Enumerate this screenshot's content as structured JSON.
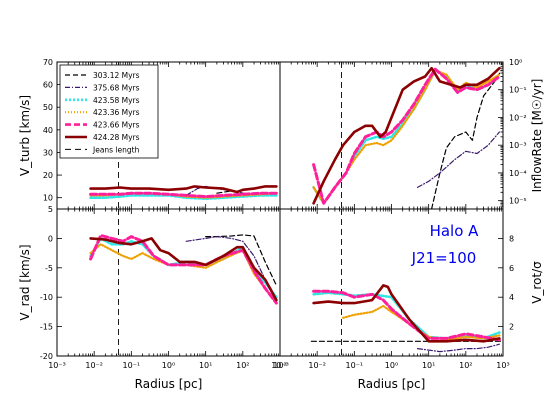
{
  "chart_data": {
    "type": "line",
    "legend": {
      "placement": "upper-left of top-left panel",
      "entries": [
        {
          "label": "303.12 Myrs",
          "color": "#000000",
          "dash": "5,3",
          "width": 1.2
        },
        {
          "label": "375.68 Myrs",
          "color": "#3b1a6e",
          "dash": "5,2,1,2",
          "width": 1.2
        },
        {
          "label": "423.58 Myrs",
          "color": "#33e6e6",
          "dash": "2,2",
          "width": 2.6
        },
        {
          "label": "423.36 Myrs",
          "color": "#f0a000",
          "dash": "1,2",
          "width": 2.2
        },
        {
          "label": "423.66 Myrs",
          "color": "#ff1f9a",
          "dash": "6,3",
          "width": 3.0
        },
        {
          "label": "424.28 Myrs",
          "color": "#8b0000",
          "dash": "",
          "width": 2.6
        },
        {
          "label": "Jeans length",
          "color": "#000000",
          "dash": "6,4",
          "width": 1.0
        }
      ]
    },
    "xlabel": "Radius [pc]",
    "xscale": "log",
    "xlim": [
      0.001,
      1000
    ],
    "xticks": [
      "10⁻³",
      "10⁻²",
      "10⁻¹",
      "10⁰",
      "10¹",
      "10²",
      "10³"
    ],
    "jeans_length_pc": 0.045,
    "annotations": [
      "Halo A",
      "J21=100"
    ],
    "panels": [
      {
        "id": "top-left",
        "ylabel": "V_turb [km/s]",
        "ylim": [
          5,
          70
        ],
        "yscale": "linear",
        "yticks": [
          "5",
          "10",
          "20",
          "30",
          "40",
          "50",
          "60",
          "70"
        ],
        "ytick_values": [
          5,
          10,
          20,
          30,
          40,
          50,
          60,
          70
        ],
        "series": [
          {
            "name": "303.12 Myrs",
            "x": [
              20,
              50,
              100,
              200,
              400,
              700
            ],
            "y": [
              12,
              13,
              12,
              11,
              11,
              11
            ]
          },
          {
            "name": "375.68 Myrs",
            "x": [
              3,
              6,
              10,
              20,
              50,
              100,
              300,
              700
            ],
            "y": [
              11,
              14,
              15,
              14,
              13,
              12,
              11,
              11
            ]
          },
          {
            "name": "423.58 Myrs",
            "x": [
              0.008,
              0.02,
              0.05,
              0.1,
              0.3,
              1,
              3,
              10,
              30,
              100,
              300,
              800
            ],
            "y": [
              10,
              10,
              10.5,
              11,
              11,
              11,
              10,
              9.5,
              10,
              10.5,
              11,
              11
            ]
          },
          {
            "name": "423.36 Myrs",
            "x": [
              0.008,
              0.02,
              0.05,
              0.1,
              0.3,
              1,
              3,
              10,
              30,
              100,
              300,
              800
            ],
            "y": [
              11,
              11,
              11.5,
              12,
              12,
              11.5,
              10.5,
              10,
              10.5,
              11,
              11.5,
              12
            ]
          },
          {
            "name": "423.66 Myrs",
            "x": [
              0.008,
              0.02,
              0.05,
              0.1,
              0.3,
              1,
              3,
              10,
              30,
              100,
              300,
              800
            ],
            "y": [
              11.5,
              11.5,
              11.5,
              12,
              12,
              11.5,
              11,
              10.5,
              11,
              11.5,
              12,
              12
            ]
          },
          {
            "name": "424.28 Myrs",
            "x": [
              0.008,
              0.02,
              0.05,
              0.1,
              0.3,
              1,
              3,
              5,
              10,
              30,
              70,
              100,
              200,
              400,
              800
            ],
            "y": [
              14,
              14,
              14.5,
              14,
              14,
              13.5,
              14,
              15,
              14.5,
              14,
              12.5,
              13.5,
              14,
              15,
              15
            ]
          }
        ]
      },
      {
        "id": "top-right",
        "ylabel": "InflowRate [M☉/yr]",
        "yscale": "log",
        "ylim": [
          5e-06,
          1
        ],
        "yticks": [
          "10⁰",
          "10⁻¹",
          "10⁻²",
          "10⁻³",
          "10⁻⁴",
          "10⁻⁵"
        ],
        "ytick_values": [
          1,
          0.1,
          0.01,
          0.001,
          0.0001,
          1e-05
        ],
        "series": [
          {
            "name": "303.12 Myrs",
            "x": [
              12,
              20,
              30,
              50,
              100,
              150,
              200,
              300,
              600,
              900
            ],
            "y": [
              5e-06,
              0.0001,
              0.0008,
              0.002,
              0.003,
              0.0015,
              0.01,
              0.06,
              0.2,
              0.5
            ]
          },
          {
            "name": "375.68 Myrs",
            "x": [
              5,
              10,
              20,
              50,
              100,
              200,
              400,
              800
            ],
            "y": [
              3e-05,
              5e-05,
              0.0001,
              0.0003,
              0.0006,
              0.0005,
              0.001,
              0.003
            ]
          },
          {
            "name": "423.58 Myrs",
            "x": [
              0.008,
              0.015,
              0.03,
              0.06,
              0.1,
              0.2,
              0.4,
              0.6,
              1,
              2,
              4,
              8,
              15,
              30,
              60,
              100,
              200,
              400,
              800
            ],
            "y": [
              3e-05,
              8e-06,
              3e-05,
              0.0001,
              0.0004,
              0.0015,
              0.002,
              0.0017,
              0.002,
              0.006,
              0.02,
              0.1,
              0.5,
              0.3,
              0.08,
              0.15,
              0.1,
              0.15,
              0.3
            ]
          },
          {
            "name": "423.36 Myrs",
            "x": [
              0.008,
              0.015,
              0.03,
              0.06,
              0.1,
              0.2,
              0.4,
              0.6,
              1,
              2,
              4,
              8,
              15,
              30,
              60,
              100,
              200,
              400,
              800
            ],
            "y": [
              3e-05,
              8e-06,
              3e-05,
              0.0001,
              0.0003,
              0.001,
              0.0012,
              0.001,
              0.0015,
              0.005,
              0.02,
              0.1,
              0.5,
              0.35,
              0.1,
              0.18,
              0.12,
              0.2,
              0.35
            ]
          },
          {
            "name": "423.66 Myrs",
            "x": [
              0.008,
              0.015,
              0.03,
              0.06,
              0.1,
              0.2,
              0.4,
              0.6,
              1,
              2,
              4,
              8,
              15,
              30,
              60,
              100,
              200,
              400,
              800
            ],
            "y": [
              0.0002,
              8e-06,
              3e-05,
              0.0001,
              0.0005,
              0.002,
              0.003,
              0.002,
              0.003,
              0.008,
              0.03,
              0.15,
              0.55,
              0.25,
              0.08,
              0.12,
              0.1,
              0.15,
              0.3
            ]
          },
          {
            "name": "424.28 Myrs",
            "x": [
              0.008,
              0.015,
              0.03,
              0.05,
              0.1,
              0.2,
              0.3,
              0.5,
              0.7,
              1,
              2,
              4,
              8,
              12,
              20,
              40,
              70,
              100,
              200,
              400,
              800
            ],
            "y": [
              8e-06,
              5e-05,
              0.0003,
              0.001,
              0.003,
              0.005,
              0.005,
              0.002,
              0.003,
              0.01,
              0.1,
              0.2,
              0.3,
              0.6,
              0.2,
              0.15,
              0.12,
              0.15,
              0.15,
              0.25,
              0.6
            ]
          }
        ]
      },
      {
        "id": "bottom-left",
        "ylabel": "V_rad [km/s]",
        "ylim": [
          -20,
          5
        ],
        "yscale": "linear",
        "yticks": [
          "0",
          "-5",
          "-10",
          "-15",
          "-20"
        ],
        "ytick_values": [
          0,
          -5,
          -10,
          -15,
          -20
        ],
        "series": [
          {
            "name": "303.12 Myrs",
            "x": [
              10,
              20,
              50,
              100,
              200,
              400,
              800
            ],
            "y": [
              0.3,
              0.3,
              0.4,
              0.6,
              0.4,
              -4,
              -8
            ]
          },
          {
            "name": "375.68 Myrs",
            "x": [
              3,
              10,
              20,
              50,
              100,
              200,
              400,
              800
            ],
            "y": [
              -0.5,
              0,
              0.3,
              0,
              -0.5,
              -3,
              -7,
              -10
            ]
          },
          {
            "name": "423.58 Myrs",
            "x": [
              0.008,
              0.015,
              0.03,
              0.06,
              0.1,
              0.2,
              0.4,
              1,
              3,
              10,
              30,
              100,
              200,
              400,
              800
            ],
            "y": [
              -3,
              0,
              -1,
              -1,
              -0.5,
              -1,
              -3,
              -4.5,
              -4,
              -4.5,
              -3.5,
              -1.5,
              -5.5,
              -7.5,
              -10
            ]
          },
          {
            "name": "423.36 Myrs",
            "x": [
              0.008,
              0.015,
              0.03,
              0.06,
              0.1,
              0.2,
              0.4,
              1,
              3,
              10,
              30,
              100,
              200,
              400,
              800
            ],
            "y": [
              -2.5,
              -1,
              -2,
              -3,
              -3.5,
              -2.5,
              -3.5,
              -4.5,
              -4.5,
              -5,
              -3.5,
              -2,
              -6,
              -8.5,
              -11
            ]
          },
          {
            "name": "423.66 Myrs",
            "x": [
              0.008,
              0.015,
              0.03,
              0.06,
              0.1,
              0.2,
              0.4,
              1,
              3,
              10,
              30,
              100,
              200,
              400,
              800
            ],
            "y": [
              -3.5,
              0.5,
              0,
              -0.5,
              0.3,
              -0.5,
              -3,
              -4.5,
              -4.5,
              -4.5,
              -3,
              -2,
              -5.5,
              -8.5,
              -11
            ]
          },
          {
            "name": "424.28 Myrs",
            "x": [
              0.008,
              0.02,
              0.05,
              0.1,
              0.2,
              0.35,
              0.6,
              1,
              2,
              5,
              10,
              30,
              70,
              100,
              200,
              400,
              800
            ],
            "y": [
              0,
              -0.2,
              -0.8,
              -1,
              -0.5,
              0,
              -2,
              -2.5,
              -4,
              -4,
              -4.5,
              -3,
              -1.5,
              -1.5,
              -5,
              -7,
              -10.5
            ]
          }
        ]
      },
      {
        "id": "bottom-right",
        "ylabel": "V_rot/σ",
        "ylim": [
          0,
          10
        ],
        "yscale": "linear",
        "yticks": [
          "8",
          "6",
          "4",
          "2"
        ],
        "ytick_values": [
          8,
          6,
          4,
          2
        ],
        "series": [
          {
            "name": "303.12 Myrs",
            "x": [
              0.007,
              1000
            ],
            "y": [
              1.0,
              1.0
            ]
          },
          {
            "name": "375.68 Myrs",
            "x": [
              5,
              10,
              20,
              50,
              100,
              200,
              400,
              800
            ],
            "y": [
              0.5,
              0.4,
              0.3,
              0.4,
              0.5,
              0.5,
              0.6,
              0.8
            ]
          },
          {
            "name": "423.58 Myrs",
            "x": [
              0.008,
              0.02,
              0.05,
              0.1,
              0.3,
              1,
              3,
              10,
              30,
              100,
              300,
              800
            ],
            "y": [
              4.2,
              4.3,
              4.2,
              4.1,
              4.2,
              4.0,
              2.5,
              1.3,
              1.2,
              1.4,
              1.2,
              1.6
            ]
          },
          {
            "name": "423.36 Myrs",
            "x": [
              0.05,
              0.1,
              0.3,
              0.6,
              1,
              3,
              10,
              30,
              100,
              300,
              800
            ],
            "y": [
              2.6,
              2.8,
              3.0,
              3.4,
              3.0,
              2.2,
              1.3,
              1.1,
              1.3,
              1.2,
              1.4
            ]
          },
          {
            "name": "423.66 Myrs",
            "x": [
              0.008,
              0.02,
              0.05,
              0.1,
              0.3,
              0.6,
              1,
              3,
              10,
              30,
              100,
              300,
              800
            ],
            "y": [
              4.4,
              4.4,
              4.3,
              4.0,
              4.2,
              3.8,
              3.2,
              2.2,
              1.2,
              1.2,
              1.5,
              1.3,
              1.1
            ]
          },
          {
            "name": "424.28 Myrs",
            "x": [
              0.008,
              0.02,
              0.05,
              0.1,
              0.3,
              0.6,
              0.8,
              1,
              3,
              10,
              30,
              100,
              300,
              800
            ],
            "y": [
              3.6,
              3.7,
              3.6,
              3.6,
              3.8,
              4.8,
              4.7,
              4.2,
              2.5,
              1.0,
              1.0,
              1.1,
              1.0,
              1.2
            ]
          }
        ]
      }
    ]
  }
}
